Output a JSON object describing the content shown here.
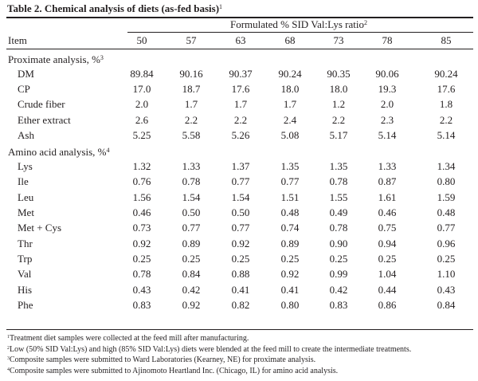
{
  "table": {
    "title": "Table 2. Chemical analysis of diets (as-fed basis)",
    "title_note": "1",
    "spanner_label": "Formulated % SID Val:Lys ratio",
    "spanner_note": "2",
    "item_header": "Item",
    "columns": [
      "50",
      "57",
      "63",
      "68",
      "73",
      "78",
      "85"
    ],
    "sections": [
      {
        "label": "Proximate analysis, %",
        "note": "3",
        "rows": [
          {
            "name": "DM",
            "values": [
              "89.84",
              "90.16",
              "90.37",
              "90.24",
              "90.35",
              "90.06",
              "90.24"
            ]
          },
          {
            "name": "CP",
            "values": [
              "17.0",
              "18.7",
              "17.6",
              "18.0",
              "18.0",
              "19.3",
              "17.6"
            ]
          },
          {
            "name": "Crude fiber",
            "values": [
              "2.0",
              "1.7",
              "1.7",
              "1.7",
              "1.2",
              "2.0",
              "1.8"
            ]
          },
          {
            "name": "Ether extract",
            "values": [
              "2.6",
              "2.2",
              "2.2",
              "2.4",
              "2.2",
              "2.3",
              "2.2"
            ]
          },
          {
            "name": "Ash",
            "values": [
              "5.25",
              "5.58",
              "5.26",
              "5.08",
              "5.17",
              "5.14",
              "5.14"
            ]
          }
        ]
      },
      {
        "label": "Amino acid analysis, %",
        "note": "4",
        "rows": [
          {
            "name": "Lys",
            "values": [
              "1.32",
              "1.33",
              "1.37",
              "1.35",
              "1.35",
              "1.33",
              "1.34"
            ]
          },
          {
            "name": "Ile",
            "values": [
              "0.76",
              "0.78",
              "0.77",
              "0.77",
              "0.78",
              "0.87",
              "0.80"
            ]
          },
          {
            "name": "Leu",
            "values": [
              "1.56",
              "1.54",
              "1.54",
              "1.51",
              "1.55",
              "1.61",
              "1.59"
            ]
          },
          {
            "name": "Met",
            "values": [
              "0.46",
              "0.50",
              "0.50",
              "0.48",
              "0.49",
              "0.46",
              "0.48"
            ]
          },
          {
            "name": "Met + Cys",
            "values": [
              "0.73",
              "0.77",
              "0.77",
              "0.74",
              "0.78",
              "0.75",
              "0.77"
            ]
          },
          {
            "name": "Thr",
            "values": [
              "0.92",
              "0.89",
              "0.92",
              "0.89",
              "0.90",
              "0.94",
              "0.96"
            ]
          },
          {
            "name": "Trp",
            "values": [
              "0.25",
              "0.25",
              "0.25",
              "0.25",
              "0.25",
              "0.25",
              "0.25"
            ]
          },
          {
            "name": "Val",
            "values": [
              "0.78",
              "0.84",
              "0.88",
              "0.92",
              "0.99",
              "1.04",
              "1.10"
            ]
          },
          {
            "name": "His",
            "values": [
              "0.43",
              "0.42",
              "0.41",
              "0.41",
              "0.42",
              "0.44",
              "0.43"
            ]
          },
          {
            "name": "Phe",
            "values": [
              "0.83",
              "0.92",
              "0.82",
              "0.80",
              "0.83",
              "0.86",
              "0.84"
            ]
          }
        ]
      }
    ],
    "footnotes": [
      {
        "mark": "1",
        "text": "Treatment diet samples were collected at the feed mill after manufacturing."
      },
      {
        "mark": "2",
        "text": "Low (50% SID Val:Lys) and high (85% SID Val:Lys) diets were blended at the feed mill to create the intermediate treatments."
      },
      {
        "mark": "3",
        "text": "Composite samples were submitted to Ward Laboratories (Kearney, NE) for proximate analysis."
      },
      {
        "mark": "4",
        "text": "Composite samples were submitted to Ajinomoto Heartland Inc. (Chicago, IL) for amino acid analysis."
      }
    ]
  }
}
